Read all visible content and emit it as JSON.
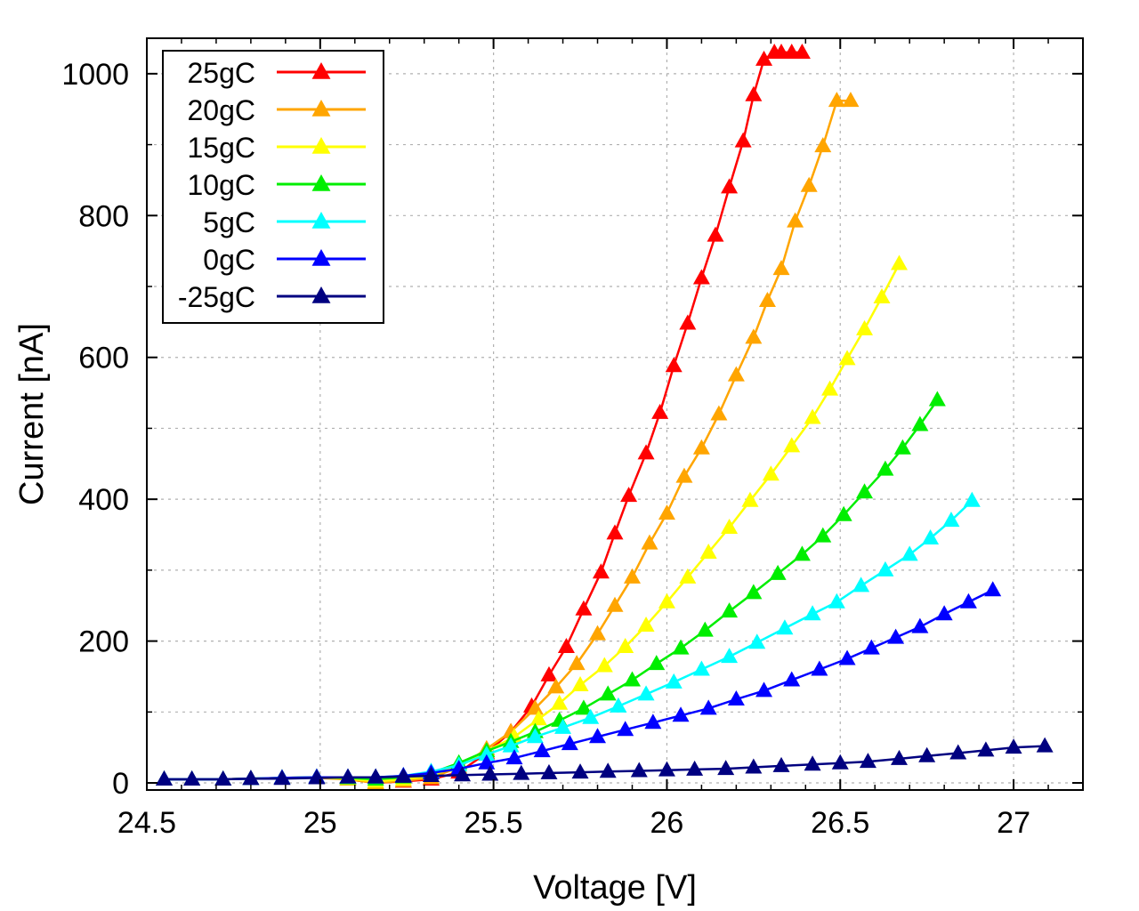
{
  "chart_data": {
    "type": "line",
    "xlabel": "Voltage [V]",
    "ylabel": "Current [nA]",
    "xlim": [
      24.5,
      27.2
    ],
    "ylim": [
      -10,
      1050
    ],
    "xticks": [
      24.5,
      25,
      25.5,
      26,
      26.5,
      27
    ],
    "xtick_labels": [
      "24.5",
      "25",
      "25.5",
      "26",
      "26.5",
      "27"
    ],
    "yticks": [
      0,
      200,
      400,
      600,
      800,
      1000
    ],
    "ytick_labels": [
      "0",
      "200",
      "400",
      "600",
      "800",
      "1000"
    ],
    "grid": true,
    "legend_position": "top-left",
    "marker": "triangle",
    "series": [
      {
        "name": "25gC",
        "color": "#ff0000",
        "x": [
          24.55,
          24.63,
          24.72,
          24.8,
          24.89,
          24.99,
          25.08,
          25.16,
          25.24,
          25.32,
          25.4,
          25.48,
          25.55,
          25.61,
          25.66,
          25.71,
          25.76,
          25.81,
          25.85,
          25.89,
          25.94,
          25.98,
          26.02,
          26.06,
          26.1,
          26.14,
          26.18,
          26.22,
          26.25,
          26.28,
          26.31,
          26.33,
          26.36,
          26.39
        ],
        "y": [
          5,
          5,
          5,
          6,
          7,
          8,
          5,
          0,
          2,
          5,
          15,
          42,
          72,
          108,
          152,
          192,
          245,
          297,
          352,
          405,
          465,
          522,
          588,
          648,
          712,
          772,
          840,
          905,
          970,
          1020,
          1030,
          1030,
          1030,
          1030
        ]
      },
      {
        "name": "20gC",
        "color": "#ffa500",
        "x": [
          24.55,
          24.63,
          24.72,
          24.8,
          24.89,
          24.99,
          25.08,
          25.16,
          25.24,
          25.32,
          25.4,
          25.48,
          25.55,
          25.62,
          25.68,
          25.74,
          25.8,
          25.85,
          25.9,
          25.95,
          26.0,
          26.05,
          26.1,
          26.15,
          26.2,
          26.25,
          26.29,
          26.33,
          26.37,
          26.41,
          26.45,
          26.49,
          26.53
        ],
        "y": [
          5,
          5,
          5,
          6,
          7,
          7,
          5,
          0,
          3,
          7,
          22,
          48,
          72,
          105,
          135,
          168,
          210,
          250,
          290,
          338,
          380,
          432,
          472,
          520,
          575,
          628,
          680,
          725,
          792,
          842,
          898,
          962,
          962
        ]
      },
      {
        "name": "15gC",
        "color": "#ffff00",
        "x": [
          24.55,
          24.63,
          24.72,
          24.8,
          24.89,
          24.99,
          25.08,
          25.16,
          25.24,
          25.32,
          25.4,
          25.48,
          25.56,
          25.63,
          25.69,
          25.75,
          25.82,
          25.88,
          25.94,
          26.0,
          26.06,
          26.12,
          26.18,
          26.24,
          26.3,
          26.36,
          26.42,
          26.47,
          26.52,
          26.57,
          26.62,
          26.67
        ],
        "y": [
          5,
          5,
          5,
          6,
          7,
          8,
          6,
          2,
          5,
          10,
          25,
          45,
          65,
          90,
          112,
          138,
          165,
          192,
          222,
          255,
          290,
          325,
          360,
          398,
          435,
          475,
          515,
          555,
          598,
          640,
          685,
          732
        ]
      },
      {
        "name": "10gC",
        "color": "#00ee00",
        "x": [
          24.55,
          24.63,
          24.72,
          24.8,
          24.89,
          24.99,
          25.08,
          25.16,
          25.24,
          25.32,
          25.4,
          25.48,
          25.55,
          25.62,
          25.69,
          25.76,
          25.83,
          25.9,
          25.97,
          26.04,
          26.11,
          26.18,
          26.25,
          26.32,
          26.39,
          26.45,
          26.51,
          26.57,
          26.63,
          26.68,
          26.73,
          26.78
        ],
        "y": [
          5,
          5,
          5,
          6,
          7,
          8,
          7,
          5,
          8,
          14,
          28,
          45,
          58,
          72,
          88,
          105,
          125,
          145,
          168,
          190,
          215,
          242,
          268,
          295,
          322,
          348,
          378,
          410,
          442,
          472,
          505,
          540
        ]
      },
      {
        "name": "5gC",
        "color": "#00ffff",
        "x": [
          24.55,
          24.63,
          24.72,
          24.8,
          24.89,
          24.99,
          25.08,
          25.16,
          25.24,
          25.32,
          25.4,
          25.48,
          25.55,
          25.62,
          25.7,
          25.78,
          25.86,
          25.94,
          26.02,
          26.1,
          26.18,
          26.26,
          26.34,
          26.42,
          26.49,
          26.56,
          26.63,
          26.7,
          26.76,
          26.82,
          26.88
        ],
        "y": [
          5,
          5,
          5,
          6,
          7,
          8,
          8,
          8,
          10,
          16,
          25,
          40,
          52,
          65,
          78,
          92,
          108,
          125,
          142,
          160,
          178,
          198,
          218,
          238,
          255,
          278,
          300,
          322,
          345,
          370,
          398
        ]
      },
      {
        "name": "0gC",
        "color": "#0000ff",
        "x": [
          24.55,
          24.63,
          24.72,
          24.8,
          24.89,
          24.99,
          25.08,
          25.16,
          25.24,
          25.32,
          25.4,
          25.48,
          25.56,
          25.64,
          25.72,
          25.8,
          25.88,
          25.96,
          26.04,
          26.12,
          26.2,
          26.28,
          26.36,
          26.44,
          26.52,
          26.59,
          26.66,
          26.73,
          26.8,
          26.87,
          26.94
        ],
        "y": [
          5,
          5,
          5,
          6,
          7,
          8,
          8,
          8,
          10,
          14,
          20,
          28,
          35,
          45,
          55,
          65,
          75,
          85,
          95,
          105,
          118,
          130,
          145,
          160,
          175,
          190,
          205,
          220,
          238,
          255,
          272
        ]
      },
      {
        "name": "-25gC",
        "color": "#000080",
        "x": [
          24.55,
          24.63,
          24.72,
          24.8,
          24.89,
          24.99,
          25.08,
          25.16,
          25.24,
          25.32,
          25.41,
          25.49,
          25.58,
          25.66,
          25.75,
          25.83,
          25.92,
          26.0,
          26.08,
          26.17,
          26.25,
          26.33,
          26.42,
          26.5,
          26.58,
          26.67,
          26.75,
          26.84,
          26.92,
          27.0,
          27.09
        ],
        "y": [
          5,
          5,
          5,
          6,
          6,
          7,
          8,
          8,
          9,
          10,
          11,
          12,
          13,
          14,
          15,
          16,
          17,
          18,
          19,
          20,
          22,
          24,
          26,
          28,
          30,
          34,
          38,
          42,
          46,
          50,
          52
        ]
      }
    ]
  }
}
